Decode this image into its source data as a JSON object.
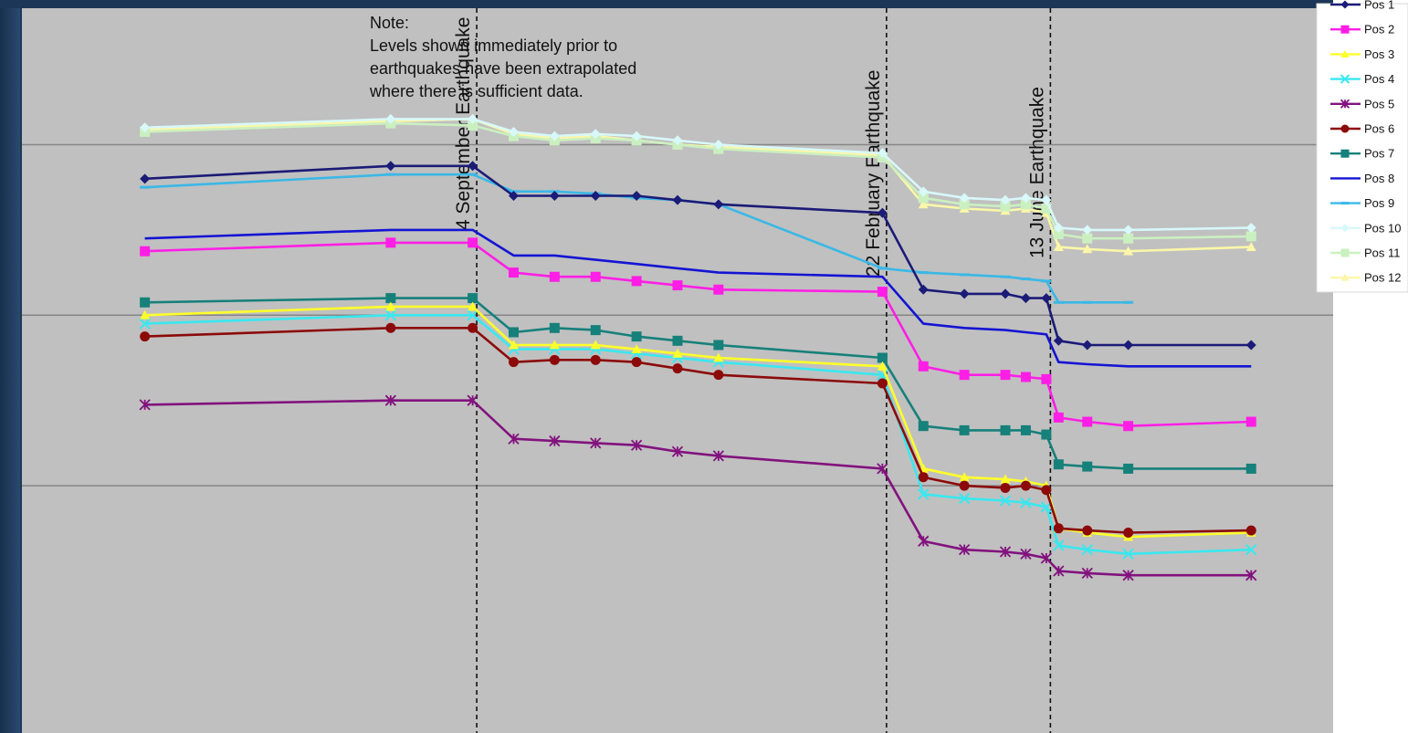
{
  "chart_data": {
    "type": "line",
    "title": "",
    "xlabel": "",
    "ylabel": "",
    "x": [
      0,
      1,
      7,
      8,
      9,
      10,
      11,
      12,
      13,
      14,
      15,
      16,
      17,
      18,
      19,
      20,
      21,
      22,
      23,
      24,
      25,
      26,
      27
    ],
    "xlim": [
      -3,
      29
    ],
    "ylim": [
      -7.8,
      9.2
    ],
    "grid": true,
    "events": [
      {
        "label": "4 September Earthquake",
        "x": 8.1
      },
      {
        "label": "22 February Earthquake",
        "x": 18.1
      },
      {
        "label": "13 June Earthquake",
        "x": 22.1
      }
    ],
    "note_lines": [
      "Note:",
      "Levels shown immediately prior to",
      "earthquakes have been extrapolated",
      "where there is sufficient data."
    ],
    "series": [
      {
        "name": "Pos 1",
        "color": "#1b1b78",
        "marker": "diamond",
        "points": [
          [
            0,
            5.2
          ],
          [
            6,
            5.5
          ],
          [
            8,
            5.5
          ],
          [
            9,
            4.8
          ],
          [
            10,
            4.8
          ],
          [
            11,
            4.8
          ],
          [
            12,
            4.8
          ],
          [
            13,
            4.7
          ],
          [
            14,
            4.6
          ],
          [
            18,
            4.4
          ],
          [
            19,
            2.6
          ],
          [
            20,
            2.5
          ],
          [
            21,
            2.5
          ],
          [
            21.5,
            2.4
          ],
          [
            22,
            2.4
          ],
          [
            22.3,
            1.4
          ],
          [
            23,
            1.3
          ],
          [
            24,
            1.3
          ],
          [
            27,
            1.3
          ]
        ]
      },
      {
        "name": "Pos 2",
        "color": "#ff1ee6",
        "marker": "square",
        "points": [
          [
            0,
            3.5
          ],
          [
            6,
            3.7
          ],
          [
            8,
            3.7
          ],
          [
            9,
            3.0
          ],
          [
            10,
            2.9
          ],
          [
            11,
            2.9
          ],
          [
            12,
            2.8
          ],
          [
            13,
            2.7
          ],
          [
            14,
            2.6
          ],
          [
            18,
            2.55
          ],
          [
            19,
            0.8
          ],
          [
            20,
            0.6
          ],
          [
            21,
            0.6
          ],
          [
            21.5,
            0.55
          ],
          [
            22,
            0.5
          ],
          [
            22.3,
            -0.4
          ],
          [
            23,
            -0.5
          ],
          [
            24,
            -0.6
          ],
          [
            27,
            -0.5
          ]
        ]
      },
      {
        "name": "Pos 3",
        "color": "#ffff2a",
        "marker": "triangle",
        "points": [
          [
            0,
            2.0
          ],
          [
            6,
            2.2
          ],
          [
            8,
            2.2
          ],
          [
            9,
            1.3
          ],
          [
            10,
            1.3
          ],
          [
            11,
            1.3
          ],
          [
            12,
            1.2
          ],
          [
            13,
            1.1
          ],
          [
            14,
            1.0
          ],
          [
            18,
            0.8
          ],
          [
            19,
            -1.6
          ],
          [
            20,
            -1.8
          ],
          [
            21,
            -1.85
          ],
          [
            21.5,
            -1.9
          ],
          [
            22,
            -2.0
          ],
          [
            22.3,
            -3.0
          ],
          [
            23,
            -3.1
          ],
          [
            24,
            -3.2
          ],
          [
            27,
            -3.1
          ]
        ]
      },
      {
        "name": "Pos 4",
        "color": "#38e8f0",
        "marker": "x",
        "points": [
          [
            0,
            1.8
          ],
          [
            6,
            2.0
          ],
          [
            8,
            2.0
          ],
          [
            9,
            1.2
          ],
          [
            10,
            1.2
          ],
          [
            11,
            1.2
          ],
          [
            12,
            1.1
          ],
          [
            13,
            1.0
          ],
          [
            14,
            0.9
          ],
          [
            18,
            0.6
          ],
          [
            19,
            -2.2
          ],
          [
            20,
            -2.3
          ],
          [
            21,
            -2.35
          ],
          [
            21.5,
            -2.4
          ],
          [
            22,
            -2.5
          ],
          [
            22.3,
            -3.4
          ],
          [
            23,
            -3.5
          ],
          [
            24,
            -3.6
          ],
          [
            27,
            -3.5
          ]
        ]
      },
      {
        "name": "Pos 5",
        "color": "#82127e",
        "marker": "star",
        "points": [
          [
            0,
            -0.1
          ],
          [
            6,
            0.0
          ],
          [
            8,
            0.0
          ],
          [
            9,
            -0.9
          ],
          [
            10,
            -0.95
          ],
          [
            11,
            -1.0
          ],
          [
            12,
            -1.05
          ],
          [
            13,
            -1.2
          ],
          [
            14,
            -1.3
          ],
          [
            18,
            -1.6
          ],
          [
            19,
            -3.3
          ],
          [
            20,
            -3.5
          ],
          [
            21,
            -3.55
          ],
          [
            21.5,
            -3.6
          ],
          [
            22,
            -3.7
          ],
          [
            22.3,
            -4.0
          ],
          [
            23,
            -4.05
          ],
          [
            24,
            -4.1
          ],
          [
            27,
            -4.1
          ]
        ]
      },
      {
        "name": "Pos 6",
        "color": "#8c0a0a",
        "marker": "circle",
        "points": [
          [
            0,
            1.5
          ],
          [
            6,
            1.7
          ],
          [
            8,
            1.7
          ],
          [
            9,
            0.9
          ],
          [
            10,
            0.95
          ],
          [
            11,
            0.95
          ],
          [
            12,
            0.9
          ],
          [
            13,
            0.75
          ],
          [
            14,
            0.6
          ],
          [
            18,
            0.4
          ],
          [
            19,
            -1.8
          ],
          [
            20,
            -2.0
          ],
          [
            21,
            -2.05
          ],
          [
            21.5,
            -2.0
          ],
          [
            22,
            -2.1
          ],
          [
            22.3,
            -3.0
          ],
          [
            23,
            -3.05
          ],
          [
            24,
            -3.1
          ],
          [
            27,
            -3.05
          ]
        ]
      },
      {
        "name": "Pos 7",
        "color": "#16807a",
        "marker": "square",
        "points": [
          [
            0,
            2.3
          ],
          [
            6,
            2.4
          ],
          [
            8,
            2.4
          ],
          [
            9,
            1.6
          ],
          [
            10,
            1.7
          ],
          [
            11,
            1.65
          ],
          [
            12,
            1.5
          ],
          [
            13,
            1.4
          ],
          [
            14,
            1.3
          ],
          [
            18,
            1.0
          ],
          [
            19,
            -0.6
          ],
          [
            20,
            -0.7
          ],
          [
            21,
            -0.7
          ],
          [
            21.5,
            -0.7
          ],
          [
            22,
            -0.8
          ],
          [
            22.3,
            -1.5
          ],
          [
            23,
            -1.55
          ],
          [
            24,
            -1.6
          ],
          [
            27,
            -1.6
          ]
        ]
      },
      {
        "name": "Pos 8",
        "color": "#1414d4",
        "marker": "none",
        "points": [
          [
            0,
            3.8
          ],
          [
            6,
            4.0
          ],
          [
            8,
            4.0
          ],
          [
            9,
            3.4
          ],
          [
            10,
            3.4
          ],
          [
            11,
            3.3
          ],
          [
            12,
            3.2
          ],
          [
            13,
            3.1
          ],
          [
            14,
            3.0
          ],
          [
            18,
            2.9
          ],
          [
            19,
            1.8
          ],
          [
            20,
            1.7
          ],
          [
            21,
            1.65
          ],
          [
            21.5,
            1.6
          ],
          [
            22,
            1.55
          ],
          [
            22.3,
            0.9
          ],
          [
            23,
            0.85
          ],
          [
            24,
            0.8
          ],
          [
            27,
            0.8
          ]
        ]
      },
      {
        "name": "Pos 9",
        "color": "#3ab8e6",
        "marker": "dash",
        "points": [
          [
            0,
            5.0
          ],
          [
            6,
            5.3
          ],
          [
            8,
            5.3
          ],
          [
            9,
            4.9
          ],
          [
            10,
            4.9
          ],
          [
            11,
            4.85
          ],
          [
            12,
            4.75
          ],
          [
            13,
            4.7
          ],
          [
            14,
            4.6
          ],
          [
            18,
            3.1
          ],
          [
            19,
            3.0
          ],
          [
            20,
            2.95
          ],
          [
            21,
            2.9
          ],
          [
            21.5,
            2.85
          ],
          [
            22,
            2.8
          ],
          [
            22.3,
            2.3
          ],
          [
            23,
            2.3
          ],
          [
            24,
            2.3
          ]
        ]
      },
      {
        "name": "Pos 10",
        "color": "#d8f8fa",
        "marker": "diamond",
        "points": [
          [
            0,
            6.4
          ],
          [
            6,
            6.6
          ],
          [
            8,
            6.6
          ],
          [
            9,
            6.3
          ],
          [
            10,
            6.2
          ],
          [
            11,
            6.25
          ],
          [
            12,
            6.2
          ],
          [
            13,
            6.1
          ],
          [
            14,
            6.0
          ],
          [
            18,
            5.8
          ],
          [
            19,
            4.9
          ],
          [
            20,
            4.75
          ],
          [
            21,
            4.7
          ],
          [
            21.5,
            4.75
          ],
          [
            22,
            4.7
          ],
          [
            22.3,
            4.05
          ],
          [
            23,
            4.0
          ],
          [
            24,
            4.0
          ],
          [
            27,
            4.05
          ]
        ]
      },
      {
        "name": "Pos 11",
        "color": "#cbf0c0",
        "marker": "square",
        "points": [
          [
            0,
            6.3
          ],
          [
            6,
            6.5
          ],
          [
            8,
            6.45
          ],
          [
            9,
            6.2
          ],
          [
            10,
            6.1
          ],
          [
            11,
            6.15
          ],
          [
            12,
            6.1
          ],
          [
            13,
            6.0
          ],
          [
            14,
            5.9
          ],
          [
            18,
            5.7
          ],
          [
            19,
            4.75
          ],
          [
            20,
            4.6
          ],
          [
            21,
            4.55
          ],
          [
            21.5,
            4.6
          ],
          [
            22,
            4.5
          ],
          [
            22.3,
            3.9
          ],
          [
            23,
            3.8
          ],
          [
            24,
            3.8
          ],
          [
            27,
            3.85
          ]
        ]
      },
      {
        "name": "Pos 12",
        "color": "#fbf7a8",
        "marker": "triangle",
        "points": [
          [
            0,
            6.35
          ],
          [
            6,
            6.55
          ],
          [
            8,
            6.6
          ],
          [
            9,
            6.25
          ],
          [
            10,
            6.15
          ],
          [
            11,
            6.2
          ],
          [
            12,
            6.1
          ],
          [
            13,
            6.0
          ],
          [
            14,
            5.95
          ],
          [
            18,
            5.75
          ],
          [
            19,
            4.6
          ],
          [
            20,
            4.5
          ],
          [
            21,
            4.45
          ],
          [
            21.5,
            4.5
          ],
          [
            22,
            4.4
          ],
          [
            22.3,
            3.6
          ],
          [
            23,
            3.55
          ],
          [
            24,
            3.5
          ],
          [
            27,
            3.6
          ]
        ]
      }
    ]
  }
}
